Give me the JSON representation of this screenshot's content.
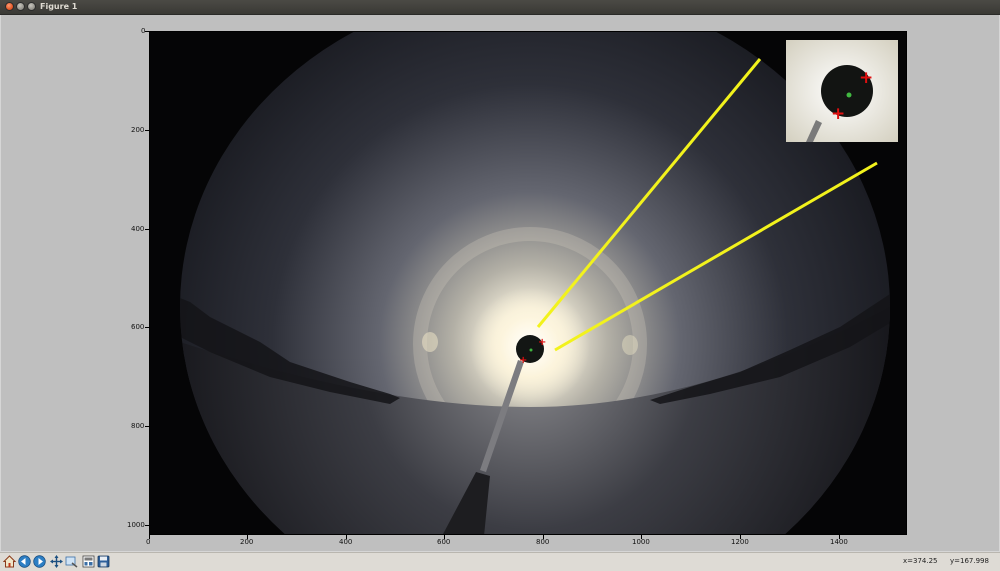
{
  "window": {
    "title": "Figure 1"
  },
  "plot": {
    "x_ticks": [
      "0",
      "200",
      "400",
      "600",
      "800",
      "1000",
      "1200",
      "1400"
    ],
    "y_ticks": [
      "0",
      "200",
      "400",
      "600",
      "800",
      "1000"
    ]
  },
  "toolbar": {
    "icons": [
      "home-icon",
      "back-icon",
      "forward-icon",
      "pan-icon",
      "zoom-icon",
      "subplots-icon",
      "save-icon"
    ]
  },
  "status": {
    "x_readout": "x=374.25",
    "y_readout": "y=167.998"
  },
  "colors": {
    "pointer_line": "#f2f21c",
    "marker": "#e01010",
    "close_button": "#e0501f"
  }
}
